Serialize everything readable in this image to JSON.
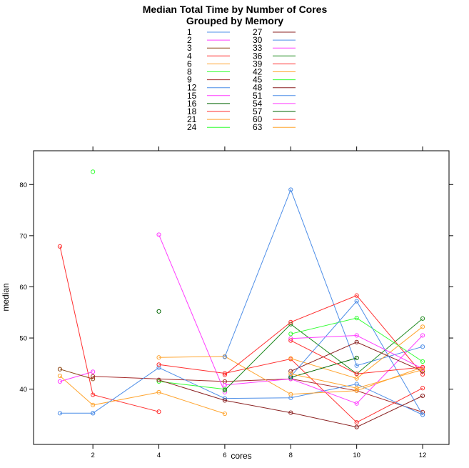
{
  "chart_data": {
    "type": "line",
    "title": "Median Total Time by Number of Cores",
    "subtitle": "Grouped by Memory",
    "xlabel": "cores",
    "ylabel": "median",
    "xlim": [
      0.2,
      12.8
    ],
    "ylim": [
      29.2,
      86.6
    ],
    "xticks": [
      2,
      4,
      6,
      8,
      10,
      12
    ],
    "yticks": [
      40,
      50,
      60,
      70,
      80
    ],
    "grid": false,
    "legend_position": "top",
    "series": [
      {
        "name": "1",
        "color": "#4f8fe8",
        "points": [
          [
            1,
            35.3
          ],
          [
            2,
            35.3
          ]
        ]
      },
      {
        "name": "2",
        "color": "#ff3dff",
        "points": [
          [
            1,
            41.5
          ],
          [
            2,
            43.4
          ]
        ]
      },
      {
        "name": "3",
        "color": "#8b4513",
        "points": [
          [
            1,
            43.9
          ],
          [
            2,
            42.0
          ]
        ]
      },
      {
        "name": "4",
        "color": "#ff3030",
        "points": [
          [
            1,
            67.9
          ],
          [
            2,
            38.9
          ],
          [
            4,
            35.6
          ]
        ]
      },
      {
        "name": "6",
        "color": "#ffa530",
        "points": [
          [
            1,
            42.6
          ],
          [
            2,
            36.9
          ],
          [
            4,
            39.4
          ],
          [
            6,
            35.2
          ]
        ]
      },
      {
        "name": "8",
        "color": "#33ff33",
        "points": [
          [
            2,
            82.5
          ]
        ]
      },
      {
        "name": "9",
        "color": "#a52a2a",
        "points": [
          [
            2,
            42.5
          ],
          [
            6,
            41.5
          ],
          [
            8,
            42.0
          ],
          [
            10,
            39.7
          ],
          [
            12,
            35.5
          ]
        ]
      },
      {
        "name": "12",
        "color": "#4f8fe8",
        "points": [
          [
            2,
            35.3
          ],
          [
            4,
            44.2
          ],
          [
            6,
            38.2
          ],
          [
            8,
            38.3
          ],
          [
            10,
            41.0
          ],
          [
            12,
            35.0
          ]
        ]
      },
      {
        "name": "15",
        "color": "#ff3dff",
        "points": [
          [
            4,
            70.2
          ],
          [
            6,
            39.4
          ]
        ]
      },
      {
        "name": "16",
        "color": "#006400",
        "points": [
          [
            4,
            55.2
          ]
        ]
      },
      {
        "name": "18",
        "color": "#ff3030",
        "points": [
          [
            4,
            44.8
          ],
          [
            6,
            43.1
          ],
          [
            8,
            45.9
          ],
          [
            10,
            33.5
          ],
          [
            12,
            40.2
          ]
        ]
      },
      {
        "name": "21",
        "color": "#ffa530",
        "points": [
          [
            4,
            46.2
          ],
          [
            6,
            46.4
          ],
          [
            8,
            39.0
          ],
          [
            10,
            39.7
          ],
          [
            12,
            44.3
          ]
        ]
      },
      {
        "name": "24",
        "color": "#33ff33",
        "points": [
          [
            4,
            41.5
          ],
          [
            6,
            40.0
          ]
        ]
      },
      {
        "name": "27",
        "color": "#8b2323",
        "points": [
          [
            4,
            41.8
          ],
          [
            6,
            37.8
          ],
          [
            8,
            35.4
          ],
          [
            10,
            32.6
          ],
          [
            12,
            38.7
          ]
        ]
      },
      {
        "name": "30",
        "color": "#4f8fe8",
        "points": [
          [
            6,
            46.3
          ],
          [
            8,
            79.0
          ],
          [
            10,
            44.6
          ],
          [
            12,
            48.3
          ]
        ]
      },
      {
        "name": "33",
        "color": "#ff3dff",
        "points": [
          [
            6,
            40.8
          ],
          [
            8,
            42.0
          ],
          [
            10,
            37.2
          ],
          [
            12,
            50.5
          ]
        ]
      },
      {
        "name": "36",
        "color": "#228b22",
        "points": [
          [
            6,
            39.8
          ],
          [
            8,
            52.7
          ],
          [
            10,
            43.0
          ],
          [
            12,
            53.8
          ]
        ]
      },
      {
        "name": "39",
        "color": "#ff3030",
        "points": [
          [
            6,
            42.8
          ],
          [
            8,
            53.1
          ],
          [
            10,
            58.3
          ],
          [
            12,
            42.9
          ]
        ]
      },
      {
        "name": "42",
        "color": "#ffa530",
        "points": [
          [
            8,
            46.0
          ],
          [
            10,
            42.1
          ],
          [
            12,
            52.2
          ]
        ]
      },
      {
        "name": "45",
        "color": "#33ff33",
        "points": [
          [
            8,
            50.8
          ],
          [
            10,
            53.9
          ],
          [
            12,
            45.4
          ]
        ]
      },
      {
        "name": "48",
        "color": "#8b2323",
        "points": [
          [
            8,
            43.5
          ],
          [
            10,
            49.2
          ],
          [
            12,
            43.5
          ]
        ]
      },
      {
        "name": "51",
        "color": "#4f8fe8",
        "points": [
          [
            8,
            42.5
          ],
          [
            10,
            57.2
          ],
          [
            12,
            35.0
          ]
        ]
      },
      {
        "name": "54",
        "color": "#ff3dff",
        "points": [
          [
            8,
            49.9
          ],
          [
            10,
            50.5
          ],
          [
            12,
            44.0
          ]
        ]
      },
      {
        "name": "57",
        "color": "#006400",
        "points": [
          [
            8,
            42.3
          ],
          [
            10,
            46.1
          ]
        ]
      },
      {
        "name": "60",
        "color": "#ff3030",
        "points": [
          [
            8,
            49.5
          ],
          [
            10,
            43.0
          ],
          [
            12,
            44.3
          ]
        ]
      },
      {
        "name": "63",
        "color": "#ffa530",
        "points": [
          [
            8,
            43.0
          ],
          [
            10,
            40.2
          ],
          [
            12,
            43.8
          ]
        ]
      }
    ]
  }
}
